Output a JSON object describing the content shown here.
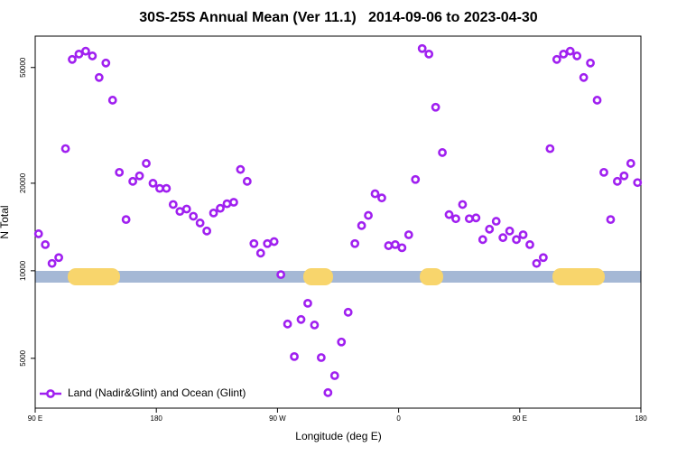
{
  "chart_data": {
    "type": "scatter",
    "title": "30S-25S Annual Mean (Ver 11.1)   2014-09-06 to 2023-04-30",
    "x_label": "Longitude (deg E)",
    "y_label": "N Total",
    "x": [
      92.5,
      97.5,
      102.5,
      107.5,
      112.5,
      117.5,
      122.5,
      127.5,
      132.5,
      137.5,
      142.5,
      147.5,
      152.5,
      157.5,
      162.5,
      167.5,
      172.5,
      177.5,
      182.5,
      187.5,
      192.5,
      197.5,
      202.5,
      207.5,
      212.5,
      217.5,
      222.5,
      227.5,
      232.5,
      237.5,
      242.5,
      247.5,
      252.5,
      257.5,
      262.5,
      267.5,
      272.5,
      277.5,
      282.5,
      287.5,
      292.5,
      297.5,
      302.5,
      307.5,
      312.5,
      317.5,
      322.5,
      327.5,
      332.5,
      337.5,
      342.5,
      347.5,
      352.5,
      357.5,
      362.5,
      367.5,
      372.5,
      377.5,
      382.5,
      387.5,
      392.5,
      397.5,
      402.5,
      407.5,
      412.5,
      417.5,
      422.5,
      427.5,
      432.5,
      437.5,
      442.5,
      447.5,
      452.5,
      457.5,
      462.5,
      467.5,
      472.5,
      477.5,
      482.5,
      487.5,
      492.5,
      497.5,
      502.5,
      507.5,
      512.5,
      517.5,
      522.5,
      527.5,
      532.5,
      537.5
    ],
    "series": [
      {
        "name": "Land (Nadir&Glint) and Ocean (Glint)",
        "color": "#a020f0",
        "values": [
          13400,
          12300,
          10600,
          11100,
          26300,
          53300,
          55600,
          56900,
          54800,
          46200,
          51800,
          38600,
          21800,
          15000,
          20300,
          21200,
          23400,
          20000,
          19200,
          19200,
          16900,
          16000,
          16300,
          15400,
          14600,
          13700,
          15800,
          16400,
          17000,
          17200,
          22300,
          20300,
          12400,
          11500,
          12400,
          12600,
          9700,
          6560,
          5070,
          6800,
          7730,
          6510,
          5030,
          3810,
          4360,
          5690,
          7200,
          12400,
          14300,
          15500,
          18400,
          17800,
          12200,
          12300,
          12000,
          13300,
          20600,
          58100,
          55600,
          36500,
          25500,
          15600,
          15100,
          16900,
          15100,
          15200,
          12800,
          13900,
          14800,
          13000,
          13700,
          12800,
          13300,
          12300,
          10600,
          11100,
          26300,
          53300,
          55600,
          56900,
          54800,
          46200,
          51800,
          38600,
          21800,
          15000,
          20300,
          21200,
          23400,
          20100
        ]
      }
    ],
    "xlim": [
      90,
      540
    ],
    "xticks": [
      {
        "value": 90,
        "label": "90 E"
      },
      180,
      {
        "value": 270,
        "label": "90 W"
      },
      {
        "value": 360,
        "label": "0"
      },
      {
        "value": 450,
        "label": "90 E"
      },
      {
        "value": 540,
        "label": "180"
      }
    ],
    "ylim": [
      3370,
      64100
    ],
    "yticks": [
      5000,
      10000,
      20000,
      50000
    ],
    "y_scale": "log",
    "legend": "lower left"
  }
}
